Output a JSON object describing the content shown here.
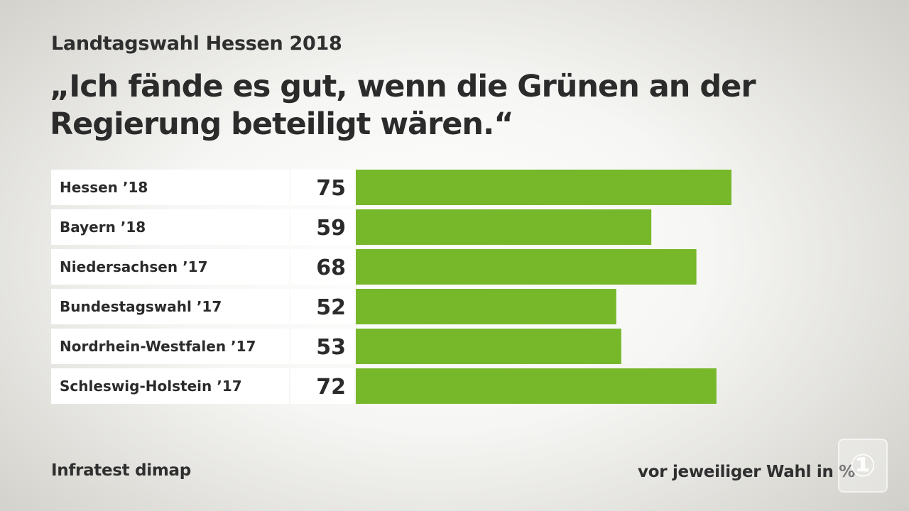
{
  "header": {
    "subtitle": "Landtagswahl Hessen 2018",
    "title": "„Ich fände es gut, wenn die Grünen an der Regierung beteiligt wären.“"
  },
  "footer": {
    "source": "Infratest dimap",
    "unit": "vor jeweiliger Wahl in %"
  },
  "logo": {
    "icon": "ard-logo-icon",
    "text": "①"
  },
  "colors": {
    "bar": "#76b82a",
    "label_bg": "#ffffff"
  },
  "chart_data": {
    "type": "bar",
    "orientation": "horizontal",
    "title": "„Ich fände es gut, wenn die Grünen an der Regierung beteiligt wären.“",
    "subtitle": "Landtagswahl Hessen 2018",
    "categories": [
      "Hessen ’18",
      "Bayern ’18",
      "Niedersachsen ’17",
      "Bundestagswahl ’17",
      "Nordrhein-Westfalen ’17",
      "Schleswig-Holstein ’17"
    ],
    "values": [
      75,
      59,
      68,
      52,
      53,
      72
    ],
    "unit": "%",
    "xlim": [
      0,
      75
    ],
    "grid": false,
    "legend": "none"
  }
}
